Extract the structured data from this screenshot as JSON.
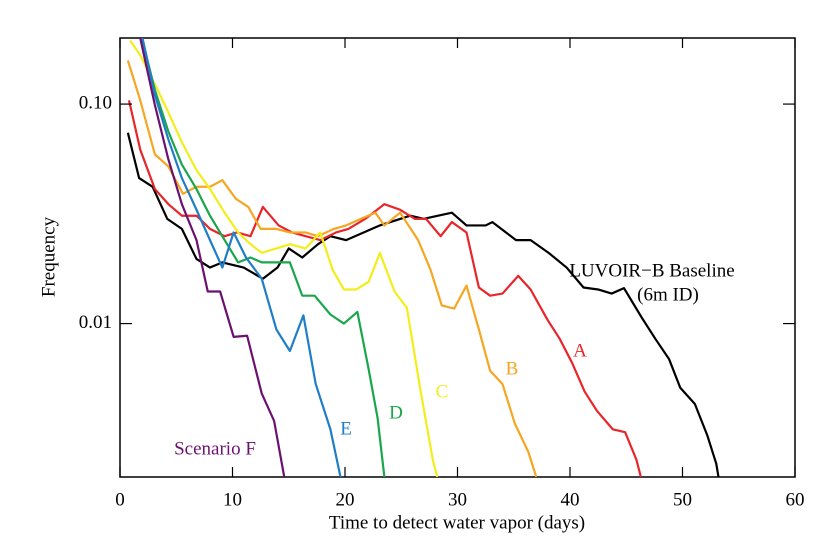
{
  "chart_data": {
    "type": "line",
    "x_label": "Time to detect water vapor (days)",
    "y_label": "Frequency",
    "xlim": [
      0,
      60
    ],
    "xticks": [
      0,
      10,
      20,
      30,
      40,
      50,
      60
    ],
    "ylim": [
      0.002,
      0.2
    ],
    "log_y": true,
    "yticks": [
      {
        "value": 0.1,
        "label": "0.10"
      },
      {
        "value": 0.01,
        "label": "0.01"
      }
    ],
    "series": [
      {
        "name": "LUVOIR−B Baseline",
        "color": "#000000",
        "x": [
          0.7,
          1.7,
          2.9,
          4.2,
          5.5,
          6.8,
          8,
          9.1,
          11,
          12.7,
          14,
          15,
          16.2,
          17.6,
          18.7,
          20.1,
          23.1,
          25.8,
          27,
          29.5,
          30.8,
          32.5,
          33.1,
          35.2,
          36.5,
          38.1,
          39.7,
          41.2,
          42.5,
          43.7,
          44.8,
          46.4,
          47.6,
          48.8,
          49.8,
          51.1,
          52.2,
          53,
          53.2
        ],
        "values": [
          0.074,
          0.046,
          0.042,
          0.03,
          0.027,
          0.0197,
          0.018,
          0.019,
          0.018,
          0.016,
          0.018,
          0.022,
          0.02,
          0.023,
          0.025,
          0.024,
          0.028,
          0.031,
          0.03,
          0.032,
          0.028,
          0.028,
          0.029,
          0.024,
          0.024,
          0.021,
          0.018,
          0.0146,
          0.0143,
          0.0137,
          0.0145,
          0.0106,
          0.0085,
          0.0069,
          0.0051,
          0.0043,
          0.0031,
          0.0023,
          0.002
        ]
      },
      {
        "name": "A",
        "color": "#e8262a",
        "x": [
          0.8,
          1.8,
          3.1,
          4.3,
          5.5,
          6.8,
          8,
          9.3,
          10.4,
          11.6,
          12.7,
          14.1,
          15.3,
          16.5,
          17.8,
          19.2,
          20.3,
          21.8,
          23.5,
          24.9,
          26.2,
          27.2,
          28.5,
          29.5,
          30.8,
          31.9,
          32.9,
          34,
          35.4,
          36.5,
          38,
          39.1,
          40.2,
          41.3,
          42.4,
          43.8,
          44.9,
          45.9,
          46.3
        ],
        "values": [
          0.104,
          0.062,
          0.041,
          0.035,
          0.031,
          0.031,
          0.027,
          0.025,
          0.026,
          0.025,
          0.034,
          0.028,
          0.026,
          0.025,
          0.024,
          0.026,
          0.027,
          0.03,
          0.035,
          0.033,
          0.03,
          0.03,
          0.025,
          0.029,
          0.026,
          0.0146,
          0.0134,
          0.0137,
          0.0165,
          0.0143,
          0.0104,
          0.0085,
          0.0066,
          0.0049,
          0.004,
          0.0033,
          0.0032,
          0.0024,
          0.002
        ]
      },
      {
        "name": "B",
        "color": "#f5a623",
        "x": [
          0.7,
          1.8,
          3.1,
          4.3,
          5.6,
          6.8,
          8,
          9.1,
          10.3,
          11.4,
          12.5,
          13.9,
          15.1,
          16.5,
          17.6,
          19,
          20.1,
          21.4,
          22.7,
          23.5,
          24.9,
          26.5,
          27.6,
          28.6,
          29.7,
          30.8,
          31.9,
          32.9,
          34,
          35.1,
          36.3,
          37
        ],
        "values": [
          0.158,
          0.104,
          0.059,
          0.052,
          0.039,
          0.042,
          0.042,
          0.045,
          0.037,
          0.034,
          0.027,
          0.027,
          0.026,
          0.026,
          0.025,
          0.027,
          0.028,
          0.03,
          0.032,
          0.028,
          0.032,
          0.024,
          0.0176,
          0.0121,
          0.0117,
          0.0149,
          0.0094,
          0.0061,
          0.0053,
          0.0035,
          0.0026,
          0.002
        ]
      },
      {
        "name": "C",
        "color": "#f2ee1c",
        "x": [
          0.9,
          1.8,
          3.1,
          4.2,
          5.5,
          6.8,
          8,
          9.3,
          10.5,
          11.6,
          12.6,
          13.9,
          15.1,
          16.5,
          17.8,
          18.9,
          19.9,
          21,
          22.1,
          23.1,
          24.4,
          25.5,
          26.7,
          27.8,
          28.2
        ],
        "values": [
          0.195,
          0.167,
          0.123,
          0.094,
          0.067,
          0.05,
          0.041,
          0.032,
          0.026,
          0.023,
          0.021,
          0.022,
          0.023,
          0.022,
          0.026,
          0.0176,
          0.0143,
          0.0143,
          0.0155,
          0.021,
          0.014,
          0.0118,
          0.005,
          0.0024,
          0.002
        ]
      },
      {
        "name": "D",
        "color": "#1aa64b",
        "x": [
          2,
          3.1,
          4.3,
          5.5,
          6.8,
          8,
          9.3,
          10.5,
          11.6,
          12.6,
          13.9,
          15.1,
          16.2,
          17.3,
          18.7,
          19.9,
          21.1,
          22.1,
          22.9,
          23.5
        ],
        "values": [
          0.195,
          0.116,
          0.075,
          0.053,
          0.041,
          0.031,
          0.024,
          0.019,
          0.02,
          0.019,
          0.019,
          0.019,
          0.0134,
          0.0134,
          0.011,
          0.01,
          0.0113,
          0.0062,
          0.0037,
          0.002
        ]
      },
      {
        "name": "E",
        "color": "#1f7ec8",
        "x": [
          2,
          3.1,
          4.3,
          5.5,
          6.8,
          8,
          9.1,
          10.1,
          11.2,
          12.6,
          13.9,
          15.1,
          16.3,
          17.4,
          18.7,
          19.6
        ],
        "values": [
          0.2,
          0.11,
          0.069,
          0.046,
          0.033,
          0.024,
          0.018,
          0.026,
          0.02,
          0.016,
          0.0094,
          0.0075,
          0.0109,
          0.0053,
          0.0033,
          0.002
        ]
      },
      {
        "name": "Scenario F",
        "color": "#6b1170",
        "x": [
          1.8,
          3.1,
          4.3,
          5.5,
          6.8,
          7.8,
          8.9,
          10.1,
          11.3,
          12.6,
          13.7,
          14.6
        ],
        "values": [
          0.2,
          0.099,
          0.056,
          0.035,
          0.024,
          0.014,
          0.014,
          0.0087,
          0.0088,
          0.0048,
          0.0036,
          0.002
        ]
      }
    ],
    "annotations": [
      "(6m ID)"
    ]
  }
}
